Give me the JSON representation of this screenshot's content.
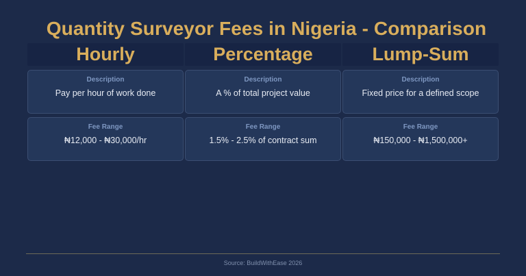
{
  "title": "Quantity Surveyor Fees in Nigeria - Comparison",
  "columns": [
    {
      "header": "Hourly",
      "description_label": "Description",
      "description": "Pay per hour of work done",
      "fee_label": "Fee Range",
      "fee": "₦12,000 - ₦30,000/hr"
    },
    {
      "header": "Percentage",
      "description_label": "Description",
      "description": "A % of total project value",
      "fee_label": "Fee Range",
      "fee": "1.5% - 2.5% of contract sum"
    },
    {
      "header": "Lump-Sum",
      "description_label": "Description",
      "description": "Fixed price for a defined scope",
      "fee_label": "Fee Range",
      "fee": "₦150,000 - ₦1,500,000+"
    }
  ],
  "source": "Source: BuildWithEase 2026",
  "colors": {
    "background": "#1c2a49",
    "accent_gold": "#d9ae5c",
    "card": "#24375a",
    "label": "#7e97c1"
  }
}
